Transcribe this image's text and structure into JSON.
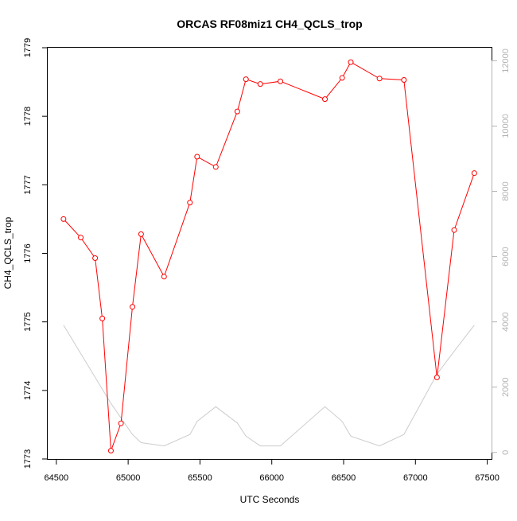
{
  "chart_data": {
    "type": "line",
    "title": "ORCAS RF08miz1 CH4_QCLS_trop",
    "xlabel": "UTC Seconds",
    "ylabel": "CH4_QCLS_trop",
    "xlim": [
      64440,
      67530
    ],
    "ylim": [
      1773,
      1779
    ],
    "xticks": [
      64500,
      65000,
      65500,
      66000,
      66500,
      67000,
      67500
    ],
    "yticks": [
      1773,
      1774,
      1775,
      1776,
      1777,
      1778,
      1779
    ],
    "y2lim": [
      -200,
      12400
    ],
    "y2ticks": [
      0,
      2000,
      4000,
      6000,
      8000,
      10000,
      12000
    ],
    "grid": false,
    "legend": "none",
    "series": [
      {
        "axis": "left",
        "color": "#ff0000",
        "marker": "open-circle",
        "x": [
          64550,
          64670,
          64770,
          64820,
          64880,
          64950,
          65030,
          65090,
          65250,
          65430,
          65480,
          65610,
          65760,
          65820,
          65920,
          66060,
          66370,
          66490,
          66550,
          66750,
          66920,
          67150,
          67270,
          67410
        ],
        "y": [
          1776.5,
          1776.23,
          1775.93,
          1775.05,
          1773.12,
          1773.52,
          1775.22,
          1776.28,
          1775.66,
          1776.74,
          1777.41,
          1777.26,
          1778.07,
          1778.54,
          1778.47,
          1778.51,
          1778.25,
          1778.56,
          1778.79,
          1778.55,
          1778.53,
          1774.19,
          1776.34,
          1777.17
        ]
      },
      {
        "axis": "right",
        "color": "#cccccc",
        "marker": "none",
        "x": [
          64550,
          64880,
          65030,
          65090,
          65250,
          65430,
          65480,
          65610,
          65760,
          65820,
          65920,
          66060,
          66370,
          66490,
          66550,
          66750,
          66920,
          67150,
          67270,
          67410
        ],
        "y": [
          3900,
          1500,
          550,
          300,
          200,
          550,
          950,
          1400,
          900,
          500,
          200,
          200,
          1400,
          950,
          500,
          200,
          550,
          2400,
          3100,
          3900
        ]
      }
    ]
  }
}
